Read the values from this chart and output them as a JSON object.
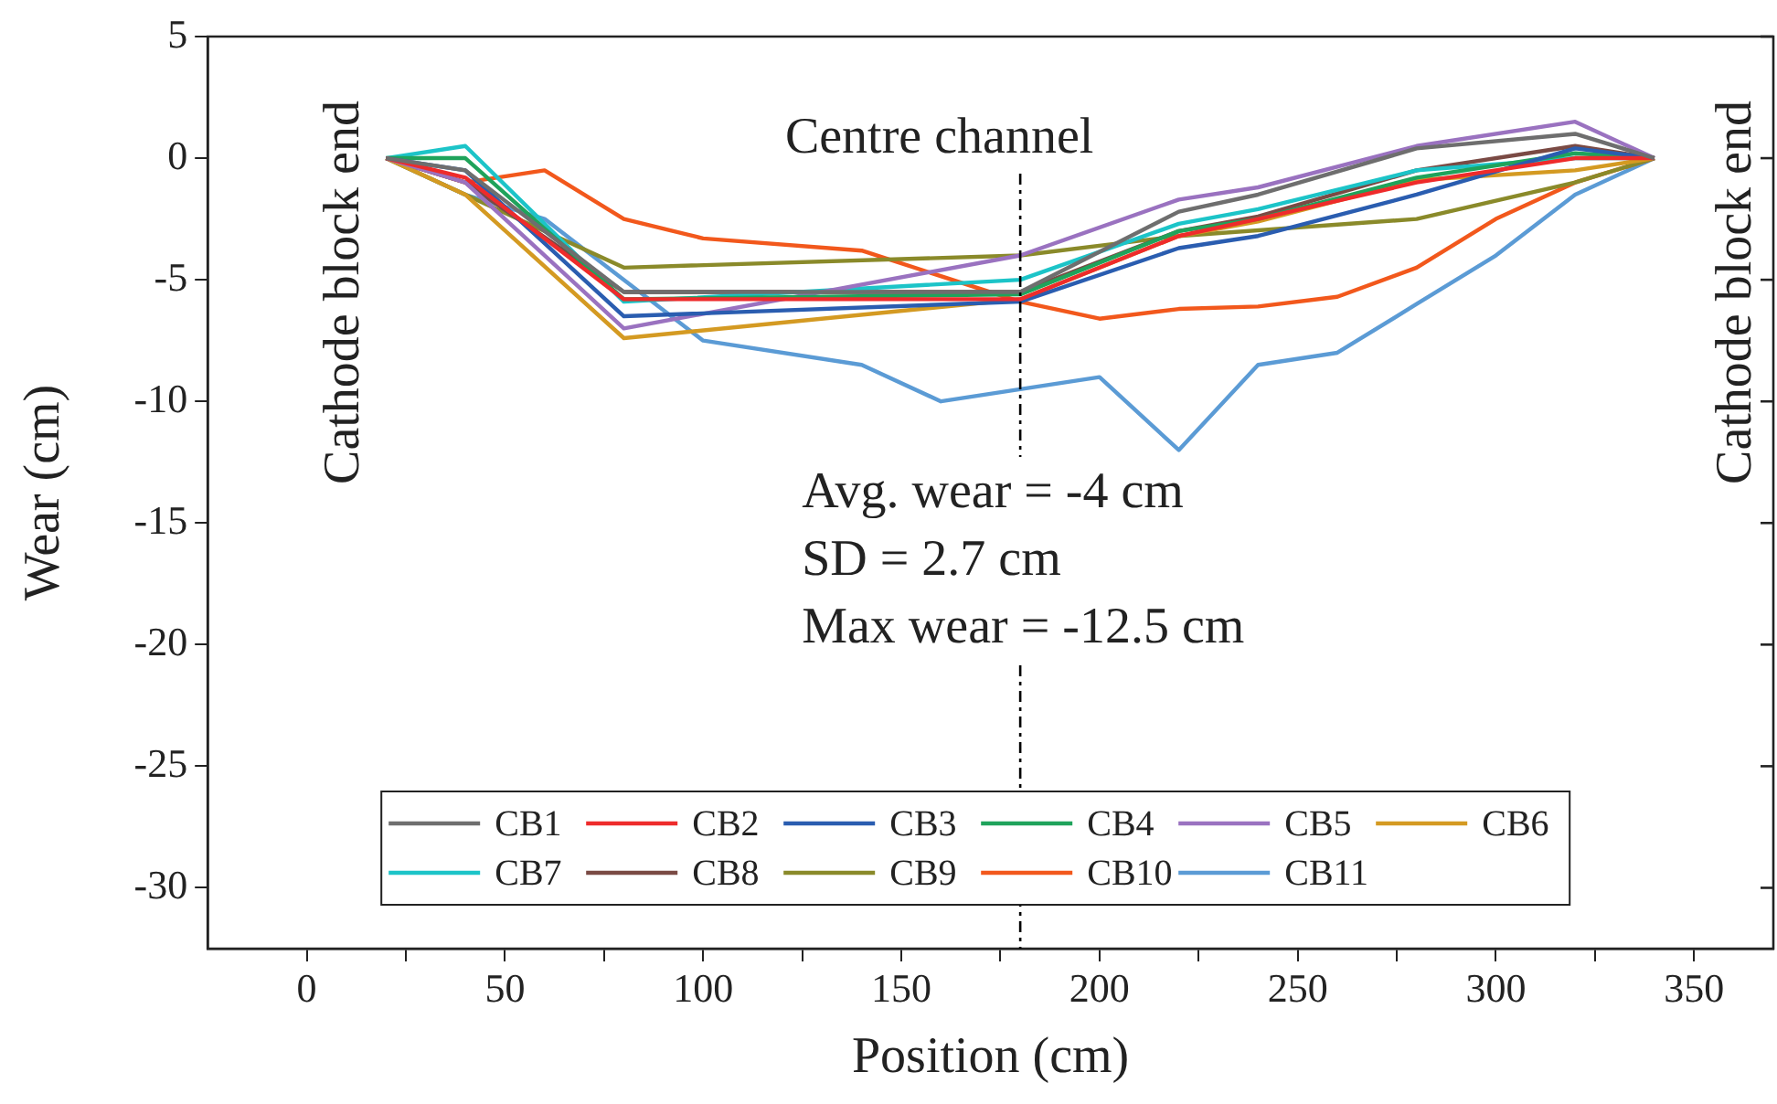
{
  "chart_data": {
    "type": "line",
    "xlabel": "Position (cm)",
    "ylabel": "Wear (cm)",
    "x": [
      20,
      40,
      60,
      80,
      100,
      140,
      160,
      180,
      200,
      220,
      240,
      260,
      280,
      300,
      320,
      340
    ],
    "xlim": [
      -25,
      370
    ],
    "xticks": [
      0,
      {
        "value": 25,
        "label": null
      },
      50,
      {
        "value": 75,
        "label": null
      },
      100,
      {
        "value": 125,
        "label": null
      },
      150,
      {
        "value": 175,
        "label": null
      },
      200,
      {
        "value": 225,
        "label": null
      },
      250,
      {
        "value": 275,
        "label": null
      },
      300,
      {
        "value": 325,
        "label": null
      },
      350
    ],
    "ylim": [
      -32.5,
      5
    ],
    "yticks": [
      5,
      0,
      -5,
      -10,
      -15,
      -20,
      -25,
      -30
    ],
    "series": [
      {
        "name": "CB1",
        "color": "#6e6e6e",
        "values": [
          0,
          -0.5,
          null,
          -5.5,
          null,
          null,
          null,
          -5.5,
          null,
          -2.2,
          -1.5,
          null,
          0.4,
          null,
          1.0,
          0
        ]
      },
      {
        "name": "CB2",
        "color": "#ee2b2b",
        "values": [
          0,
          -0.8,
          null,
          -5.8,
          null,
          null,
          null,
          -5.8,
          null,
          -3.2,
          -2.5,
          null,
          -1.0,
          null,
          0,
          0
        ]
      },
      {
        "name": "CB3",
        "color": "#2a5db0",
        "values": [
          0,
          -0.5,
          null,
          -6.5,
          null,
          null,
          null,
          -5.9,
          null,
          -3.7,
          -3.2,
          null,
          -1.5,
          null,
          0.4,
          0
        ]
      },
      {
        "name": "CB4",
        "color": "#1fa35b",
        "values": [
          0,
          0,
          null,
          -5.8,
          null,
          null,
          null,
          -5.6,
          null,
          -3.0,
          -2.5,
          null,
          -0.8,
          null,
          0.2,
          0
        ]
      },
      {
        "name": "CB5",
        "color": "#9a72c0",
        "values": [
          0,
          -1.0,
          null,
          -7.0,
          null,
          null,
          null,
          -4.0,
          null,
          -1.7,
          -1.2,
          null,
          0.5,
          null,
          1.5,
          0
        ]
      },
      {
        "name": "CB6",
        "color": "#d49a22",
        "values": [
          0,
          -1.5,
          null,
          -7.4,
          null,
          null,
          null,
          -5.8,
          null,
          -3.2,
          -2.6,
          null,
          -0.9,
          null,
          -0.5,
          0
        ]
      },
      {
        "name": "CB7",
        "color": "#1cc4c8",
        "values": [
          0,
          0.5,
          null,
          -5.9,
          null,
          null,
          null,
          -5.0,
          null,
          -2.7,
          -2.1,
          null,
          -0.5,
          null,
          0,
          0
        ]
      },
      {
        "name": "CB8",
        "color": "#7a4a44",
        "values": [
          0,
          -1.0,
          null,
          -5.5,
          null,
          null,
          null,
          -5.5,
          null,
          -3.0,
          -2.4,
          null,
          -0.5,
          null,
          0.5,
          0
        ]
      },
      {
        "name": "CB9",
        "color": "#8a8a2a",
        "values": [
          0,
          -1.5,
          null,
          -4.5,
          null,
          null,
          null,
          -4.0,
          null,
          -3.2,
          null,
          null,
          -2.5,
          null,
          -1.0,
          0
        ]
      },
      {
        "name": "CB10",
        "color": "#f2581c",
        "values": [
          0,
          -1.0,
          -0.5,
          -2.5,
          -3.3,
          -3.8,
          null,
          -5.9,
          -6.6,
          -6.2,
          -6.1,
          -5.7,
          -4.5,
          -2.5,
          -1.0,
          0
        ]
      },
      {
        "name": "CB11",
        "color": "#5b9bd5",
        "values": [
          0,
          -1.5,
          -2.5,
          -5.0,
          -7.5,
          -8.5,
          -10.0,
          -9.5,
          -9.0,
          -12.0,
          -8.5,
          -8.0,
          -6.0,
          -4.0,
          -1.5,
          0
        ]
      }
    ],
    "ref_lines": [
      {
        "axis": "x",
        "value": 180,
        "line_style": "dashdot",
        "color": "#000000"
      }
    ],
    "annotations": [
      "Cathode block end",
      "Cathode block end",
      "Centre channel",
      "Avg. wear = -4 cm",
      "SD = 2.7 cm",
      "Max wear = -12.5 cm"
    ],
    "legend": "bottom",
    "grid": false,
    "marker": "none",
    "line_style": "solid"
  }
}
